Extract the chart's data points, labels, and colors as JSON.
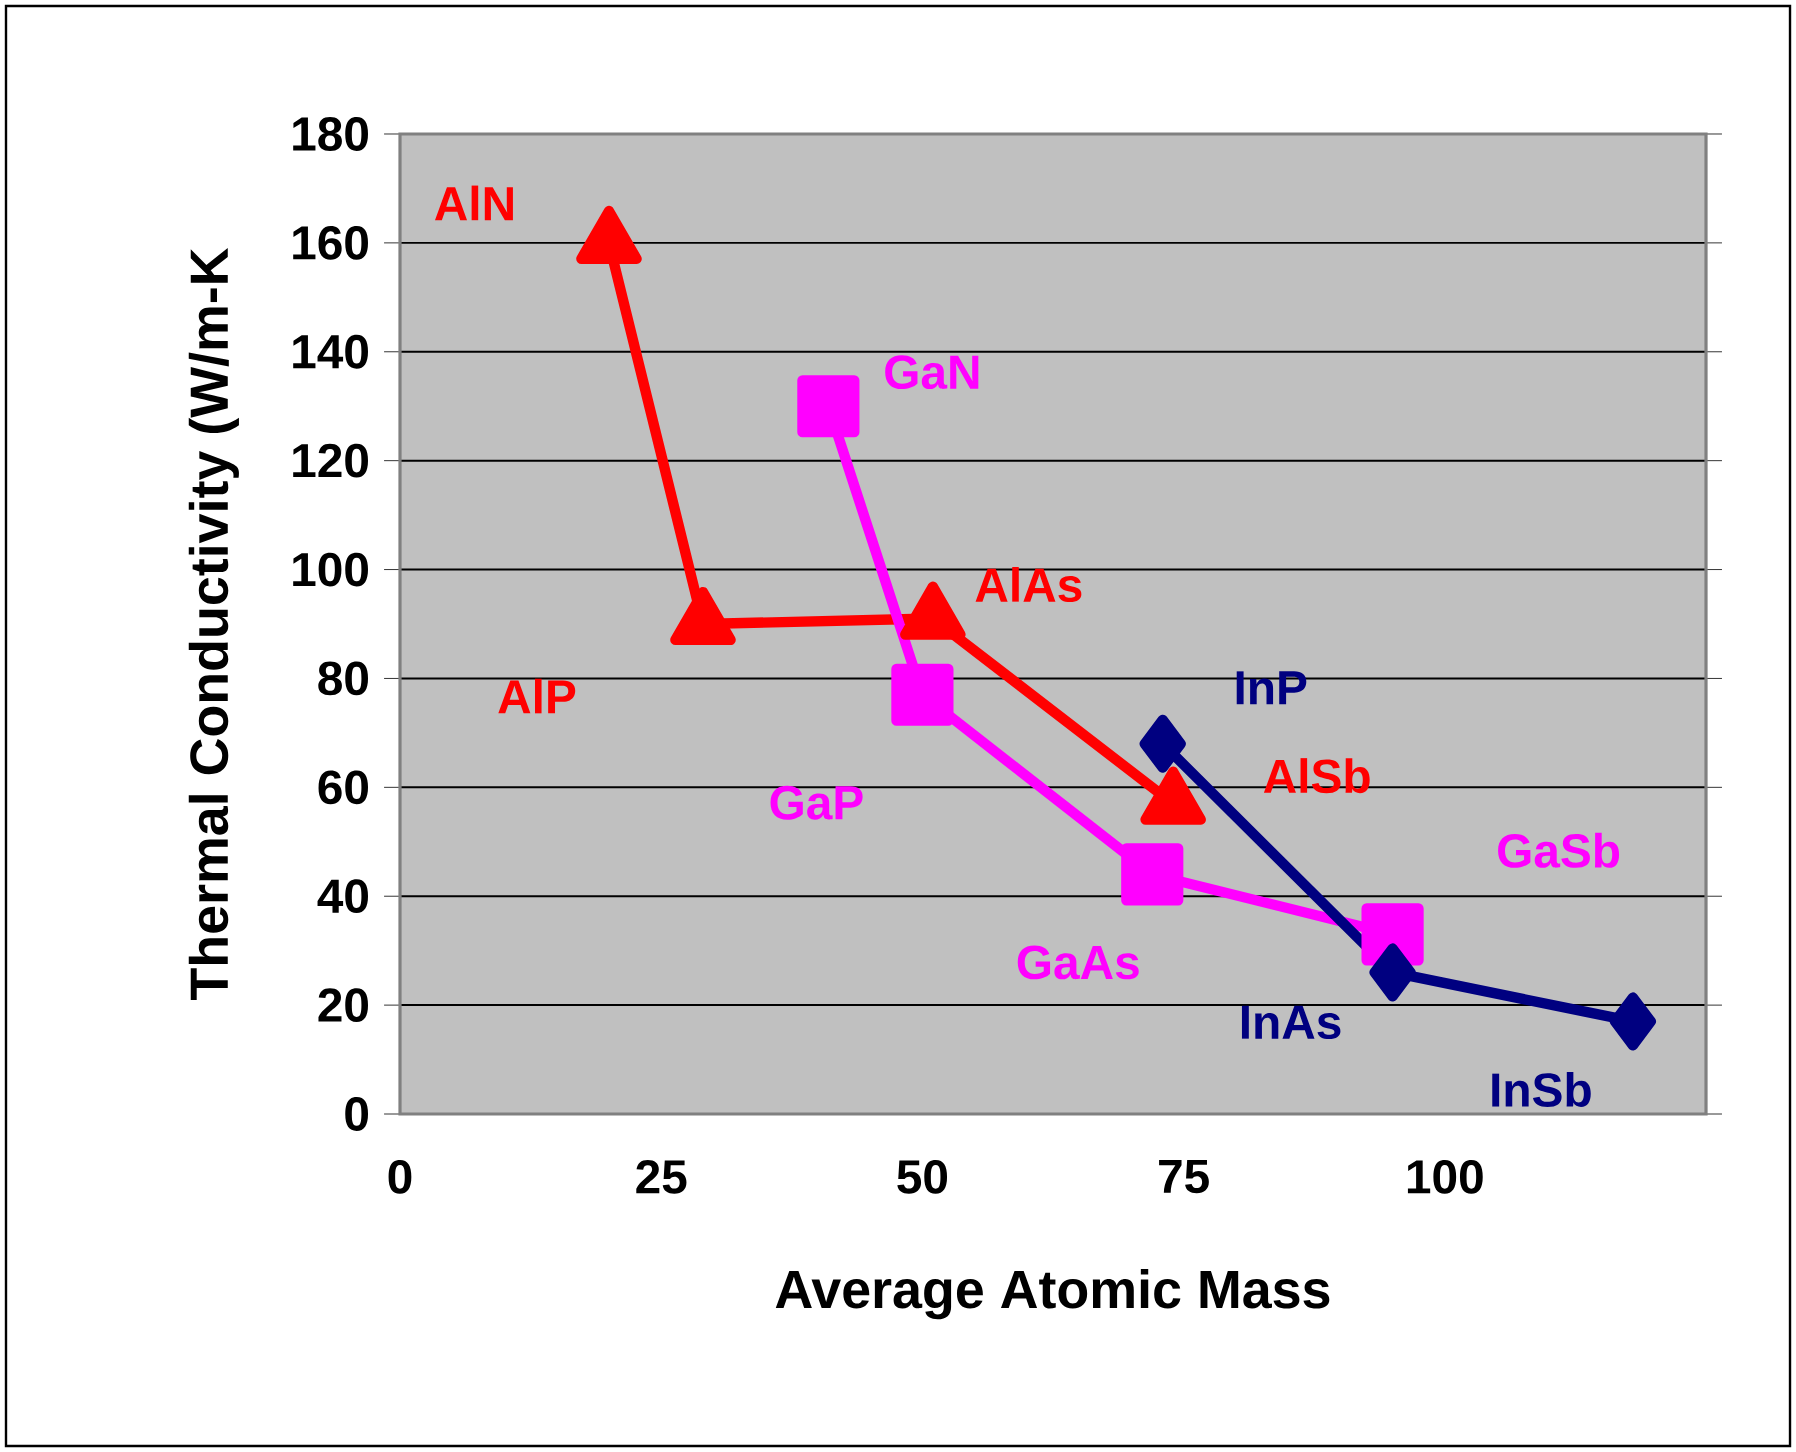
{
  "chart_data": {
    "type": "line",
    "xlabel": "Average Atomic Mass",
    "ylabel": "Thermal Conductivity (W/m-K",
    "xlim": [
      0,
      125
    ],
    "xticks": [
      0,
      25,
      50,
      75,
      100
    ],
    "ylim": [
      0,
      180
    ],
    "yticks": [
      0,
      20,
      40,
      60,
      80,
      100,
      120,
      140,
      160,
      180
    ],
    "grid": "y",
    "line_style": "solid",
    "series": [
      {
        "color": "#ff0000",
        "marker": "triangle",
        "x": [
          20,
          29,
          51,
          74
        ],
        "values": [
          160,
          90,
          91,
          57
        ]
      },
      {
        "color": "#ff00ff",
        "marker": "square",
        "x": [
          41,
          50,
          72,
          95
        ],
        "values": [
          130,
          77,
          44,
          33
        ]
      },
      {
        "color": "#000080",
        "marker": "diamond",
        "x": [
          73,
          95,
          118
        ],
        "values": [
          68,
          26,
          17
        ]
      }
    ],
    "annotations": [
      {
        "text": "AlN",
        "x": 20,
        "y": 160
      },
      {
        "text": "AlP",
        "x": 29,
        "y": 90
      },
      {
        "text": "AlAs",
        "x": 51,
        "y": 91
      },
      {
        "text": "AlSb",
        "x": 74,
        "y": 57
      },
      {
        "text": "GaN",
        "x": 41,
        "y": 130
      },
      {
        "text": "GaP",
        "x": 50,
        "y": 77
      },
      {
        "text": "GaAs",
        "x": 72,
        "y": 44
      },
      {
        "text": "GaSb",
        "x": 95,
        "y": 33
      },
      {
        "text": "InP",
        "x": 73,
        "y": 68
      },
      {
        "text": "InAs",
        "x": 95,
        "y": 26
      },
      {
        "text": "InSb",
        "x": 118,
        "y": 17
      }
    ]
  }
}
